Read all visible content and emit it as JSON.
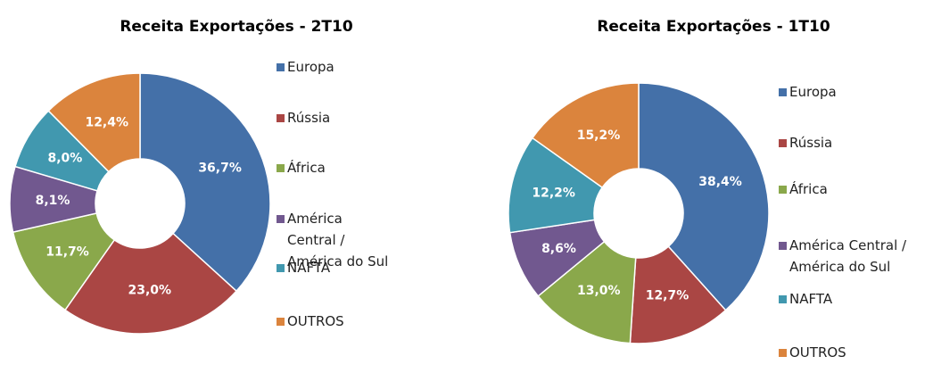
{
  "chart_data": [
    {
      "type": "donut",
      "title": "Receita Exportações  - 2T10",
      "categories": [
        "Europa",
        "Rússia",
        "África",
        "América Central / América do Sul",
        "NAFTA",
        "OUTROS"
      ],
      "values": [
        36.7,
        23.0,
        11.7,
        8.1,
        8.0,
        12.4
      ],
      "value_labels": [
        "36,7%",
        "23,0%",
        "11,7%",
        "8,1%",
        "8,0%",
        "12,4%"
      ],
      "colors": [
        "#4470a8",
        "#aa4644",
        "#8aa84b",
        "#71588f",
        "#4198af",
        "#db843d"
      ],
      "legend": "right"
    },
    {
      "type": "donut",
      "title": "Receita Exportações - 1T10",
      "categories": [
        "Europa",
        "Rússia",
        "África",
        "América Central / América do Sul",
        "NAFTA",
        "OUTROS"
      ],
      "values": [
        38.4,
        12.7,
        13.0,
        8.6,
        12.2,
        15.2
      ],
      "value_labels": [
        "38,4%",
        "12,7%",
        "13,0%",
        "8,6%",
        "12,2%",
        "15,2%"
      ],
      "colors": [
        "#4470a8",
        "#aa4644",
        "#8aa84b",
        "#71588f",
        "#4198af",
        "#db843d"
      ],
      "legend": "right"
    }
  ]
}
